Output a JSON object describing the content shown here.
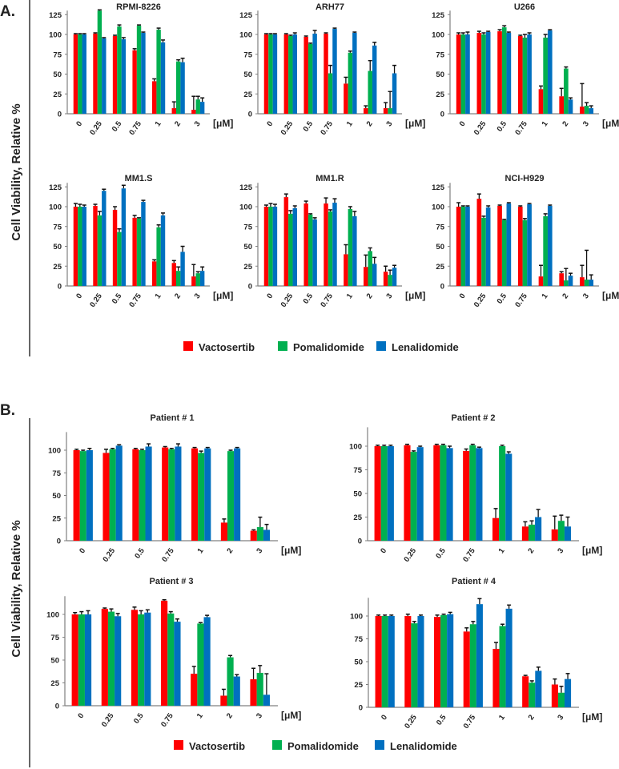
{
  "colors": {
    "Vactosertib": "#ff0000",
    "Pomalidomide": "#00b050",
    "Lenalidomide": "#0070c0",
    "axis": "#808080",
    "error": "#111111"
  },
  "chart_data": [
    {
      "section": "A.",
      "type": "bar",
      "title": "RPMI-8226",
      "ylabel": "Cell Viability, Relative %",
      "xunit": "[μM]",
      "categories": [
        "0",
        "0.25",
        "0.5",
        "0.75",
        "1",
        "2",
        "3"
      ],
      "yticks": [
        0,
        25,
        50,
        75,
        100,
        125
      ],
      "ylim": [
        0,
        130
      ],
      "series": [
        {
          "name": "Vactosertib",
          "values": [
            100,
            101,
            98,
            80,
            41,
            7,
            5
          ],
          "errors": [
            1,
            1,
            1,
            2,
            3,
            8,
            17
          ]
        },
        {
          "name": "Pomalidomide",
          "values": [
            100,
            130,
            110,
            111,
            106,
            66,
            18
          ],
          "errors": [
            1,
            1,
            2,
            1,
            2,
            2,
            4
          ]
        },
        {
          "name": "Lenalidomide",
          "values": [
            100,
            95,
            94,
            102,
            90,
            65,
            15
          ],
          "errors": [
            1,
            1,
            2,
            1,
            3,
            5,
            5
          ]
        }
      ]
    },
    {
      "section": "A.",
      "type": "bar",
      "title": "ARH77",
      "xunit": "[μM]",
      "categories": [
        "0",
        "0.25",
        "0.5",
        "0.75",
        "1",
        "2",
        "3"
      ],
      "yticks": [
        0,
        25,
        50,
        75,
        100,
        125
      ],
      "ylim": [
        0,
        130
      ],
      "series": [
        {
          "name": "Vactosertib",
          "values": [
            100,
            100,
            97,
            101,
            38,
            7,
            7
          ],
          "errors": [
            1,
            1,
            1,
            1,
            8,
            3,
            7
          ]
        },
        {
          "name": "Pomalidomide",
          "values": [
            100,
            98,
            88,
            51,
            77,
            54,
            7
          ],
          "errors": [
            1,
            1,
            1,
            10,
            2,
            13,
            21
          ]
        },
        {
          "name": "Lenalidomide",
          "values": [
            100,
            100,
            101,
            107,
            102,
            86,
            51
          ],
          "errors": [
            1,
            2,
            4,
            1,
            1,
            4,
            10
          ]
        }
      ]
    },
    {
      "section": "A.",
      "type": "bar",
      "title": "U266",
      "xunit": "[μM]",
      "categories": [
        "0",
        "0.25",
        "0.5",
        "0.75",
        "1",
        "2",
        "3"
      ],
      "yticks": [
        0,
        25,
        50,
        75,
        100,
        125
      ],
      "ylim": [
        0,
        130
      ],
      "series": [
        {
          "name": "Vactosertib",
          "values": [
            100,
            102,
            104,
            98,
            31,
            22,
            9
          ],
          "errors": [
            2,
            2,
            2,
            1,
            4,
            10,
            29
          ]
        },
        {
          "name": "Pomalidomide",
          "values": [
            100,
            100,
            109,
            96,
            96,
            57,
            10
          ],
          "errors": [
            2,
            2,
            2,
            4,
            4,
            2,
            4
          ]
        },
        {
          "name": "Lenalidomide",
          "values": [
            100,
            103,
            102,
            100,
            105,
            18,
            7
          ],
          "errors": [
            3,
            1,
            1,
            2,
            1,
            2,
            3
          ]
        }
      ]
    },
    {
      "section": "A.",
      "type": "bar",
      "title": "MM1.S",
      "xunit": "[μM]",
      "categories": [
        "0",
        "0.25",
        "0.5",
        "0.75",
        "1",
        "2",
        "3"
      ],
      "yticks": [
        0,
        25,
        50,
        75,
        100,
        125
      ],
      "ylim": [
        0,
        130
      ],
      "series": [
        {
          "name": "Vactosertib",
          "values": [
            100,
            101,
            96,
            86,
            31,
            29,
            12
          ],
          "errors": [
            4,
            2,
            4,
            3,
            2,
            3,
            15
          ]
        },
        {
          "name": "Pomalidomide",
          "values": [
            100,
            89,
            68,
            85,
            74,
            19,
            16
          ],
          "errors": [
            3,
            5,
            4,
            1,
            3,
            5,
            2
          ]
        },
        {
          "name": "Lenalidomide",
          "values": [
            100,
            120,
            123,
            106,
            89,
            43,
            19
          ],
          "errors": [
            2,
            2,
            4,
            2,
            3,
            7,
            5
          ]
        }
      ]
    },
    {
      "section": "A.",
      "type": "bar",
      "title": "MM1.R",
      "xunit": "[μM]",
      "categories": [
        "0",
        "0.25",
        "0.5",
        "0.75",
        "1",
        "2",
        "3"
      ],
      "yticks": [
        0,
        25,
        50,
        75,
        100,
        125
      ],
      "ylim": [
        0,
        130
      ],
      "series": [
        {
          "name": "Vactosertib",
          "values": [
            100,
            112,
            104,
            104,
            40,
            24,
            18
          ],
          "errors": [
            2,
            4,
            3,
            7,
            12,
            15,
            7
          ]
        },
        {
          "name": "Pomalidomide",
          "values": [
            100,
            91,
            90,
            94,
            97,
            44,
            14
          ],
          "errors": [
            4,
            4,
            1,
            2,
            3,
            4,
            6
          ]
        },
        {
          "name": "Lenalidomide",
          "values": [
            100,
            98,
            84,
            105,
            88,
            28,
            23
          ],
          "errors": [
            3,
            3,
            2,
            5,
            6,
            8,
            3
          ]
        }
      ]
    },
    {
      "section": "A.",
      "type": "bar",
      "title": "NCI-H929",
      "xunit": "[μM]",
      "categories": [
        "0",
        "0.25",
        "0.5",
        "0.75",
        "1",
        "2",
        "3"
      ],
      "yticks": [
        0,
        25,
        50,
        75,
        100,
        125
      ],
      "ylim": [
        0,
        130
      ],
      "series": [
        {
          "name": "Vactosertib",
          "values": [
            100,
            110,
            101,
            100,
            12,
            16,
            11
          ],
          "errors": [
            5,
            6,
            1,
            1,
            14,
            2,
            15
          ]
        },
        {
          "name": "Pomalidomide",
          "values": [
            100,
            86,
            83,
            83,
            88,
            7,
            8
          ],
          "errors": [
            1,
            2,
            1,
            2,
            3,
            15,
            37
          ]
        },
        {
          "name": "Lenalidomide",
          "values": [
            100,
            99,
            104,
            103,
            101,
            13,
            8
          ],
          "errors": [
            1,
            2,
            1,
            1,
            1,
            3,
            6
          ]
        }
      ]
    },
    {
      "section": "B.",
      "type": "bar",
      "title": "Patient # 1",
      "ylabel": "Cell Viability, Relative %",
      "xunit": "[μM]",
      "categories": [
        "0",
        "0.25",
        "0.5",
        "0.75",
        "1",
        "2",
        "3"
      ],
      "yticks": [
        0,
        25,
        50,
        75,
        100
      ],
      "ylim": [
        0,
        120
      ],
      "series": [
        {
          "name": "Vactosertib",
          "values": [
            100,
            97,
            101,
            103,
            102,
            20,
            11
          ],
          "errors": [
            1,
            4,
            1,
            1,
            1,
            4,
            1
          ]
        },
        {
          "name": "Pomalidomide",
          "values": [
            99,
            101,
            100,
            101,
            97,
            99,
            15
          ],
          "errors": [
            1,
            1,
            1,
            1,
            2,
            1,
            11
          ]
        },
        {
          "name": "Lenalidomide",
          "values": [
            100,
            105,
            104,
            104,
            102,
            102,
            12
          ],
          "errors": [
            2,
            1,
            3,
            3,
            1,
            1,
            6
          ]
        }
      ]
    },
    {
      "section": "B.",
      "type": "bar",
      "title": "Patient # 2",
      "xunit": "[μM]",
      "categories": [
        "0",
        "0.25",
        "0.5",
        "0.75",
        "1",
        "2",
        "3"
      ],
      "yticks": [
        0,
        25,
        50,
        75,
        100
      ],
      "ylim": [
        0,
        120
      ],
      "series": [
        {
          "name": "Vactosertib",
          "values": [
            100,
            101,
            101,
            95,
            24,
            15,
            12
          ],
          "errors": [
            1,
            1,
            1,
            2,
            10,
            5,
            14
          ]
        },
        {
          "name": "Pomalidomide",
          "values": [
            100,
            94,
            101,
            101,
            100,
            17,
            21
          ],
          "errors": [
            1,
            1,
            1,
            1,
            1,
            4,
            6
          ]
        },
        {
          "name": "Lenalidomide",
          "values": [
            100,
            99,
            98,
            98,
            92,
            25,
            15
          ],
          "errors": [
            1,
            1,
            2,
            1,
            2,
            8,
            10
          ]
        }
      ]
    },
    {
      "section": "B.",
      "type": "bar",
      "title": "Patient # 3",
      "xunit": "[μM]",
      "categories": [
        "0",
        "0.25",
        "0.5",
        "0.75",
        "1",
        "2",
        "3"
      ],
      "yticks": [
        0,
        25,
        50,
        75,
        100
      ],
      "ylim": [
        0,
        120
      ],
      "series": [
        {
          "name": "Vactosertib",
          "values": [
            100,
            106,
            105,
            115,
            35,
            11,
            29
          ],
          "errors": [
            2,
            1,
            3,
            1,
            8,
            7,
            12
          ]
        },
        {
          "name": "Pomalidomide",
          "values": [
            100,
            103,
            100,
            101,
            90,
            53,
            36
          ],
          "errors": [
            3,
            3,
            4,
            2,
            1,
            2,
            8
          ]
        },
        {
          "name": "Lenalidomide",
          "values": [
            100,
            98,
            102,
            92,
            97,
            32,
            12
          ],
          "errors": [
            4,
            3,
            3,
            3,
            2,
            2,
            23
          ]
        }
      ]
    },
    {
      "section": "B.",
      "type": "bar",
      "title": "Patient # 4",
      "xunit": "[μM]",
      "categories": [
        "0",
        "0.25",
        "0.5",
        "0.75",
        "1",
        "2",
        "3"
      ],
      "yticks": [
        0,
        25,
        50,
        75,
        100
      ],
      "ylim": [
        0,
        120
      ],
      "series": [
        {
          "name": "Vactosertib",
          "values": [
            100,
            100,
            99,
            83,
            64,
            34,
            25
          ],
          "errors": [
            1,
            2,
            2,
            4,
            7,
            1,
            6
          ]
        },
        {
          "name": "Pomalidomide",
          "values": [
            100,
            92,
            101,
            91,
            89,
            27,
            16
          ],
          "errors": [
            1,
            2,
            1,
            3,
            2,
            2,
            7
          ]
        },
        {
          "name": "Lenalidomide",
          "values": [
            100,
            100,
            102,
            113,
            108,
            40,
            31
          ],
          "errors": [
            1,
            1,
            2,
            6,
            4,
            4,
            6
          ]
        }
      ]
    }
  ],
  "sections": [
    {
      "label": "A.",
      "ylabel": "Cell Viability, Relative %",
      "legend": [
        "Vactosertib",
        "Pomalidomide",
        "Lenalidomide"
      ]
    },
    {
      "label": "B.",
      "ylabel": "Cell Viability, Relative %",
      "legend": [
        "Vactosertib",
        "Pomalidomide",
        "Lenalidomide"
      ]
    }
  ]
}
